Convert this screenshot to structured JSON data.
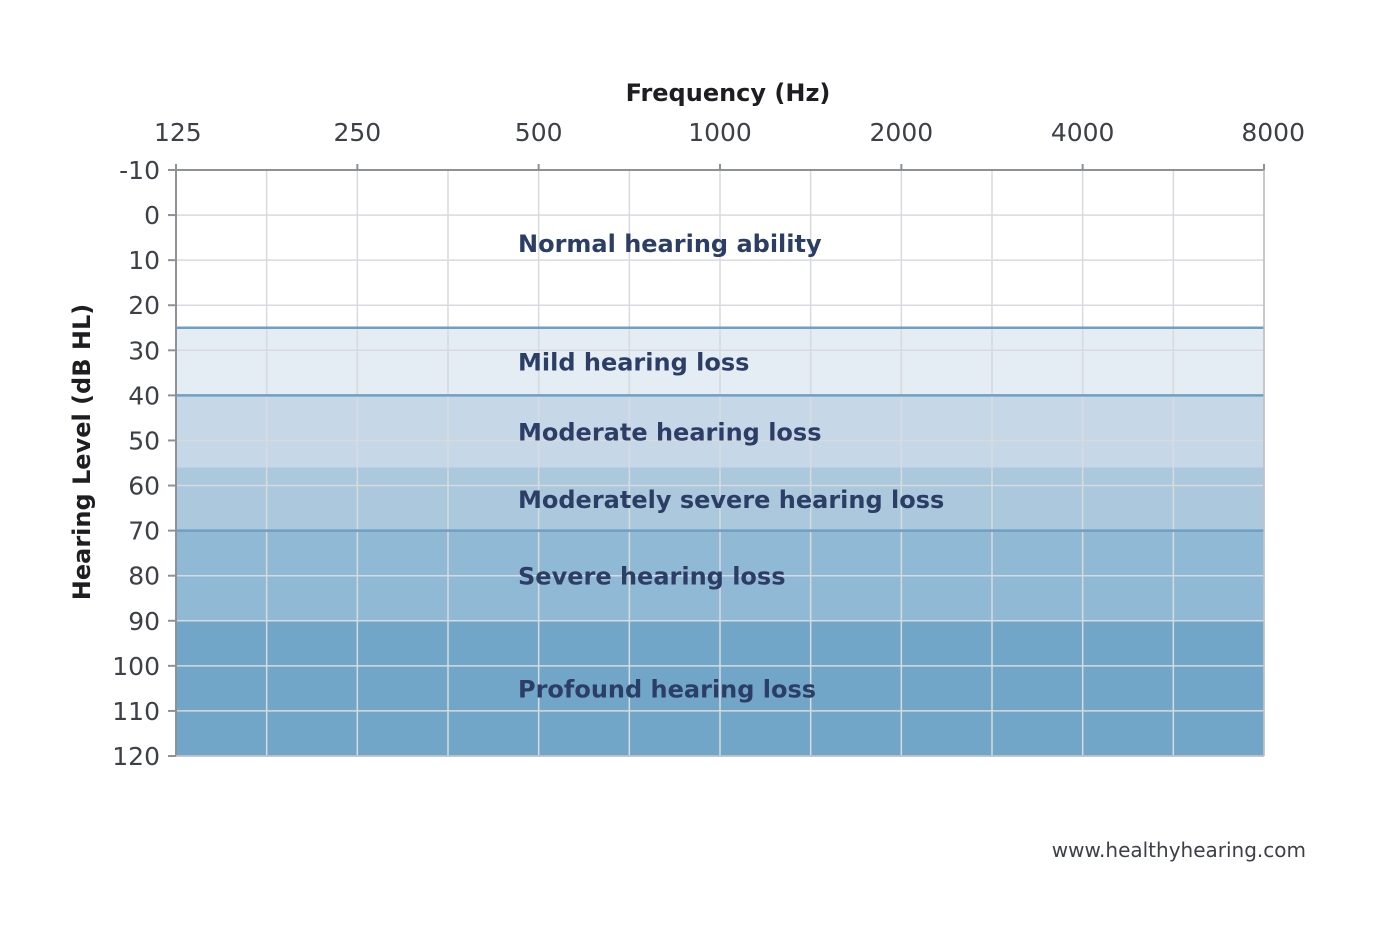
{
  "chart_data": {
    "type": "area",
    "title": "",
    "xlabel": "Frequency (Hz)",
    "ylabel": "Hearing Level (dB HL)",
    "x_axis_position": "top",
    "x_scale": "log2",
    "x_ticks": [
      125,
      250,
      500,
      1000,
      2000,
      4000,
      8000
    ],
    "x_tick_labels": [
      "125",
      "250",
      "500",
      "1000",
      "2000",
      "4000",
      "8000"
    ],
    "y_inverted": true,
    "ylim": [
      -10,
      120
    ],
    "y_ticks": [
      -10,
      0,
      10,
      20,
      30,
      40,
      50,
      60,
      70,
      80,
      90,
      100,
      110,
      120
    ],
    "y_tick_labels": [
      "-10",
      "0",
      "10",
      "20",
      "30",
      "40",
      "50",
      "60",
      "70",
      "80",
      "90",
      "100",
      "110",
      "120"
    ],
    "grid": true,
    "bands": [
      {
        "label": "Normal hearing ability",
        "from_db": -10,
        "to_db": 25,
        "color": "#ffffff"
      },
      {
        "label": "Mild hearing loss",
        "from_db": 25,
        "to_db": 40,
        "color": "#e4ecf4"
      },
      {
        "label": "Moderate hearing loss",
        "from_db": 40,
        "to_db": 56,
        "color": "#c6d8e7"
      },
      {
        "label": "Moderately severe hearing loss",
        "from_db": 56,
        "to_db": 70,
        "color": "#abc8dd"
      },
      {
        "label": "Severe hearing loss",
        "from_db": 70,
        "to_db": 90,
        "color": "#90b9d5"
      },
      {
        "label": "Profound hearing loss",
        "from_db": 90,
        "to_db": 120,
        "color": "#71a6c9"
      }
    ],
    "boundary_lines_db": [
      25,
      40,
      70
    ],
    "colors": {
      "boundary_line": "#6f9fc3",
      "grid": "#d7dade",
      "band_label": "#2c3e66"
    }
  },
  "source": "www.healthyhearing.com"
}
